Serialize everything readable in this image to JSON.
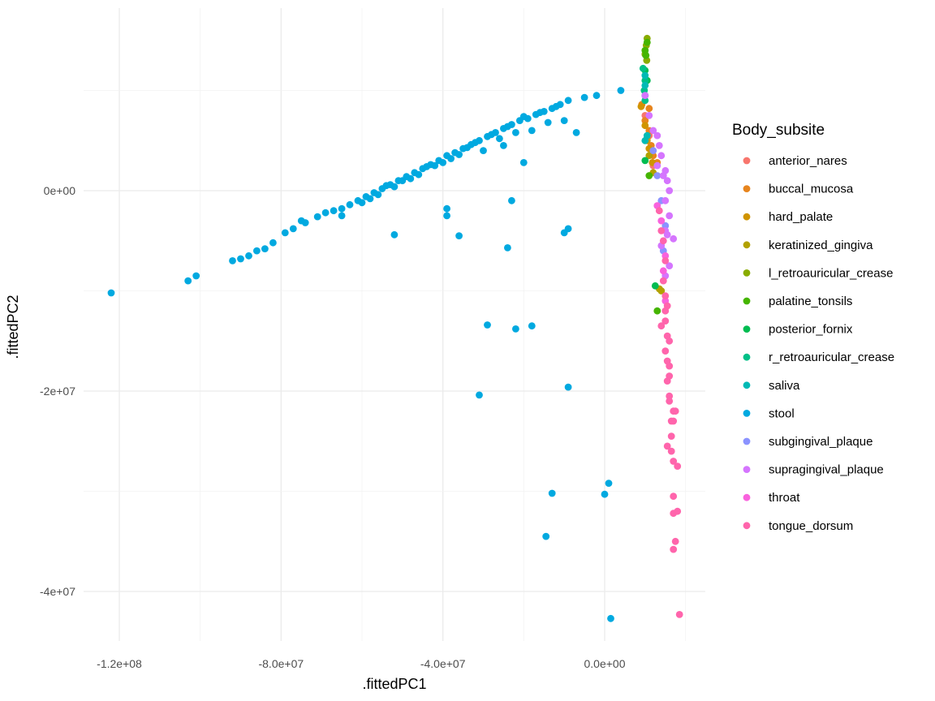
{
  "chart_data": {
    "type": "scatter",
    "title": "",
    "xlabel": ".fittedPC1",
    "ylabel": ".fittedPC2",
    "xlim": [
      -125000000.0,
      25000000.0
    ],
    "ylim": [
      -45000000.0,
      18000000.0
    ],
    "x_ticks": [
      {
        "value": -120000000.0,
        "label": "-1.2e+08"
      },
      {
        "value": -80000000.0,
        "label": "-8.0e+07"
      },
      {
        "value": -40000000.0,
        "label": "-4.0e+07"
      },
      {
        "value": 0,
        "label": "0.0e+00"
      }
    ],
    "y_ticks": [
      {
        "value": 0,
        "label": "0e+00"
      },
      {
        "value": -20000000.0,
        "label": "-2e+07"
      },
      {
        "value": -40000000.0,
        "label": "-4e+07"
      }
    ],
    "grid": true,
    "legend": {
      "title": "Body_subsite",
      "position": "right"
    },
    "series": [
      {
        "name": "anterior_nares",
        "color": "#F8766D",
        "points": [
          [
            10000000.0,
            7500000.0
          ],
          [
            11000000.0,
            5500000.0
          ],
          [
            12000000.0,
            2500000.0
          ]
        ]
      },
      {
        "name": "buccal_mucosa",
        "color": "#E7851E",
        "points": [
          [
            9200000.0,
            8600000.0
          ],
          [
            10000000.0,
            7000000.0
          ],
          [
            11000000.0,
            6000000.0
          ],
          [
            10500000.0,
            5200000.0
          ],
          [
            11500000.0,
            4500000.0
          ],
          [
            12000000.0,
            3500000.0
          ],
          [
            11000000.0,
            8200000.0
          ],
          [
            13000000.0,
            2800000.0
          ]
        ]
      },
      {
        "name": "hard_palate",
        "color": "#D09400",
        "points": [
          [
            9000000.0,
            8400000.0
          ],
          [
            10000000.0,
            6500000.0
          ],
          [
            10500000.0,
            5000000.0
          ],
          [
            11000000.0,
            4200000.0
          ],
          [
            11800000.0,
            2800000.0
          ]
        ]
      },
      {
        "name": "keratinized_gingiva",
        "color": "#B2A100",
        "points": [
          [
            11000000.0,
            3500000.0
          ],
          [
            12000000.0,
            1800000.0
          ],
          [
            13500000.0,
            -9800000.0
          ],
          [
            14000000.0,
            -10000000.0
          ]
        ]
      },
      {
        "name": "l_retroauricular_crease",
        "color": "#89AC00",
        "points": [
          [
            10500000.0,
            15200000.0
          ],
          [
            10300000.0,
            14500000.0
          ],
          [
            10000000.0,
            13600000.0
          ],
          [
            10400000.0,
            13000000.0
          ]
        ]
      },
      {
        "name": "palatine_tonsils",
        "color": "#45B500",
        "points": [
          [
            10500000.0,
            14800000.0
          ],
          [
            10000000.0,
            14000000.0
          ],
          [
            10200000.0,
            13500000.0
          ],
          [
            11000000.0,
            1500000.0
          ],
          [
            13000000.0,
            -12000000.0
          ]
        ]
      },
      {
        "name": "posterior_fornix",
        "color": "#00BC51",
        "points": [
          [
            10000000.0,
            12000000.0
          ],
          [
            10500000.0,
            11000000.0
          ],
          [
            10000000.0,
            3000000.0
          ],
          [
            12500000.0,
            -9500000.0
          ]
        ]
      },
      {
        "name": "r_retroauricular_crease",
        "color": "#00C087",
        "points": [
          [
            9500000.0,
            12200000.0
          ],
          [
            10000000.0,
            11000000.0
          ],
          [
            9800000.0,
            10000000.0
          ],
          [
            10000000.0,
            9500000.0
          ],
          [
            10000000.0,
            9000000.0
          ]
        ]
      },
      {
        "name": "saliva",
        "color": "#00BAB5",
        "points": [
          [
            10000000.0,
            10500000.0
          ],
          [
            10000000.0,
            11500000.0
          ],
          [
            10500000.0,
            5500000.0
          ],
          [
            10000000.0,
            5000000.0
          ]
        ]
      },
      {
        "name": "stool",
        "color": "#00A9E0",
        "points": [
          [
            -122000000.0,
            -10200000.0
          ],
          [
            -103000000.0,
            -9000000.0
          ],
          [
            -101000000.0,
            -8500000.0
          ],
          [
            -92000000.0,
            -7000000.0
          ],
          [
            -90000000.0,
            -6800000.0
          ],
          [
            -88000000.0,
            -6500000.0
          ],
          [
            -86000000.0,
            -6000000.0
          ],
          [
            -84000000.0,
            -5800000.0
          ],
          [
            -82000000.0,
            -5200000.0
          ],
          [
            -79000000.0,
            -4200000.0
          ],
          [
            -77000000.0,
            -3800000.0
          ],
          [
            -74000000.0,
            -3200000.0
          ],
          [
            -71000000.0,
            -2600000.0
          ],
          [
            -69000000.0,
            -2200000.0
          ],
          [
            -67000000.0,
            -2000000.0
          ],
          [
            -65000000.0,
            -1800000.0
          ],
          [
            -63000000.0,
            -1400000.0
          ],
          [
            -61000000.0,
            -1000000.0
          ],
          [
            -59000000.0,
            -600000.0
          ],
          [
            -57000000.0,
            -200000.0
          ],
          [
            -55000000.0,
            200000.0
          ],
          [
            -53000000.0,
            600000.0
          ],
          [
            -51000000.0,
            1000000.0
          ],
          [
            -49000000.0,
            1400000.0
          ],
          [
            -47000000.0,
            1800000.0
          ],
          [
            -45000000.0,
            2200000.0
          ],
          [
            -43000000.0,
            2600000.0
          ],
          [
            -41000000.0,
            3000000.0
          ],
          [
            -39000000.0,
            3500000.0
          ],
          [
            -37000000.0,
            3800000.0
          ],
          [
            -35000000.0,
            4200000.0
          ],
          [
            -33000000.0,
            4600000.0
          ],
          [
            -31000000.0,
            5000000.0
          ],
          [
            -29000000.0,
            5400000.0
          ],
          [
            -27000000.0,
            5800000.0
          ],
          [
            -25000000.0,
            6200000.0
          ],
          [
            -23000000.0,
            6600000.0
          ],
          [
            -21000000.0,
            7000000.0
          ],
          [
            -19000000.0,
            7200000.0
          ],
          [
            -17000000.0,
            7600000.0
          ],
          [
            -15000000.0,
            7900000.0
          ],
          [
            -13000000.0,
            8200000.0
          ],
          [
            -11000000.0,
            8600000.0
          ],
          [
            -9000000.0,
            9000000.0
          ],
          [
            -5000000.0,
            9300000.0
          ],
          [
            -2000000.0,
            9500000.0
          ],
          [
            4000000.0,
            10000000.0
          ],
          [
            -58000000.0,
            -800000.0
          ],
          [
            -56000000.0,
            -400000.0
          ],
          [
            -52000000.0,
            400000.0
          ],
          [
            -48000000.0,
            1200000.0
          ],
          [
            -44000000.0,
            2400000.0
          ],
          [
            -40000000.0,
            2800000.0
          ],
          [
            -36000000.0,
            3600000.0
          ],
          [
            -32000000.0,
            4800000.0
          ],
          [
            -28000000.0,
            5600000.0
          ],
          [
            -24000000.0,
            6400000.0
          ],
          [
            -20000000.0,
            7400000.0
          ],
          [
            -16000000.0,
            7800000.0
          ],
          [
            -12000000.0,
            8400000.0
          ],
          [
            -30000000.0,
            4000000.0
          ],
          [
            -26000000.0,
            5200000.0
          ],
          [
            -22000000.0,
            5800000.0
          ],
          [
            -18000000.0,
            6000000.0
          ],
          [
            -14000000.0,
            6800000.0
          ],
          [
            -10000000.0,
            7000000.0
          ],
          [
            -7000000.0,
            5800000.0
          ],
          [
            -20000000.0,
            2800000.0
          ],
          [
            -25000000.0,
            4500000.0
          ],
          [
            -23000000.0,
            -1000000.0
          ],
          [
            -39000000.0,
            -1800000.0
          ],
          [
            -39000000.0,
            -2500000.0
          ],
          [
            -52000000.0,
            -4400000.0
          ],
          [
            -36000000.0,
            -4500000.0
          ],
          [
            -24000000.0,
            -5700000.0
          ],
          [
            -10000000.0,
            -4200000.0
          ],
          [
            -9000000.0,
            -3800000.0
          ],
          [
            -29000000.0,
            -13400000.0
          ],
          [
            -22000000.0,
            -13800000.0
          ],
          [
            -18000000.0,
            -13500000.0
          ],
          [
            -31000000.0,
            -20400000.0
          ],
          [
            -9000000.0,
            -19600000.0
          ],
          [
            1000000.0,
            -29200000.0
          ],
          [
            -13000000.0,
            -30200000.0
          ],
          [
            0,
            -30300000.0
          ],
          [
            -14500000.0,
            -34500000.0
          ],
          [
            1500000.0,
            -42700000.0
          ],
          [
            -65000000.0,
            -2500000.0
          ],
          [
            -75000000.0,
            -3000000.0
          ],
          [
            -60000000.0,
            -1200000.0
          ],
          [
            -46000000.0,
            1600000.0
          ],
          [
            -42000000.0,
            2500000.0
          ],
          [
            -38000000.0,
            3200000.0
          ],
          [
            -34000000.0,
            4300000.0
          ],
          [
            -50000000.0,
            1000000.0
          ],
          [
            -54000000.0,
            500000.0
          ]
        ]
      },
      {
        "name": "subgingival_plaque",
        "color": "#8B93FF",
        "points": [
          [
            12000000.0,
            4000000.0
          ],
          [
            13000000.0,
            1500000.0
          ],
          [
            14000000.0,
            -1000000.0
          ],
          [
            15000000.0,
            -3500000.0
          ],
          [
            14500000.0,
            -6000000.0
          ]
        ]
      },
      {
        "name": "supragingival_plaque",
        "color": "#D575FE",
        "points": [
          [
            10000000.0,
            9500000.0
          ],
          [
            11000000.0,
            7500000.0
          ],
          [
            12000000.0,
            6000000.0
          ],
          [
            13000000.0,
            5500000.0
          ],
          [
            13500000.0,
            4500000.0
          ],
          [
            14000000.0,
            3500000.0
          ],
          [
            15000000.0,
            2000000.0
          ],
          [
            15500000.0,
            1000000.0
          ],
          [
            16000000.0,
            0
          ],
          [
            15000000.0,
            -1000000.0
          ],
          [
            16000000.0,
            -2500000.0
          ],
          [
            15000000.0,
            -4000000.0
          ],
          [
            17000000.0,
            -4800000.0
          ],
          [
            14000000.0,
            -5500000.0
          ],
          [
            16000000.0,
            -7500000.0
          ],
          [
            15000000.0,
            -8500000.0
          ],
          [
            13000000.0,
            2500000.0
          ],
          [
            14500000.0,
            1500000.0
          ],
          [
            15500000.0,
            -4400000.0
          ]
        ]
      },
      {
        "name": "throat",
        "color": "#F962DD",
        "points": [
          [
            13000000.0,
            -1500000.0
          ],
          [
            14000000.0,
            -3000000.0
          ],
          [
            15000000.0,
            -6500000.0
          ],
          [
            14500000.0,
            -8000000.0
          ],
          [
            15000000.0,
            -11000000.0
          ]
        ]
      },
      {
        "name": "tongue_dorsum",
        "color": "#FF65AC",
        "points": [
          [
            13500000.0,
            -2000000.0
          ],
          [
            14000000.0,
            -4000000.0
          ],
          [
            14500000.0,
            -5000000.0
          ],
          [
            15000000.0,
            -7000000.0
          ],
          [
            14500000.0,
            -9000000.0
          ],
          [
            15000000.0,
            -10500000.0
          ],
          [
            15500000.0,
            -11500000.0
          ],
          [
            15000000.0,
            -13000000.0
          ],
          [
            15500000.0,
            -14500000.0
          ],
          [
            15000000.0,
            -16000000.0
          ],
          [
            16000000.0,
            -17500000.0
          ],
          [
            15500000.0,
            -19000000.0
          ],
          [
            16000000.0,
            -20500000.0
          ],
          [
            17000000.0,
            -22000000.0
          ],
          [
            17000000.0,
            -23000000.0
          ],
          [
            16500000.0,
            -24500000.0
          ],
          [
            15500000.0,
            -25500000.0
          ],
          [
            17000000.0,
            -27000000.0
          ],
          [
            18000000.0,
            -27500000.0
          ],
          [
            16500000.0,
            -26000000.0
          ],
          [
            16000000.0,
            -21000000.0
          ],
          [
            17500000.0,
            -22000000.0
          ],
          [
            17000000.0,
            -30500000.0
          ],
          [
            17000000.0,
            -32200000.0
          ],
          [
            18000000.0,
            -32000000.0
          ],
          [
            17500000.0,
            -35000000.0
          ],
          [
            17000000.0,
            -35800000.0
          ],
          [
            18500000.0,
            -42300000.0
          ],
          [
            15500000.0,
            -17000000.0
          ],
          [
            16000000.0,
            -15000000.0
          ],
          [
            15000000.0,
            -12000000.0
          ],
          [
            14000000.0,
            -13500000.0
          ],
          [
            16000000.0,
            -18500000.0
          ],
          [
            16500000.0,
            -23000000.0
          ]
        ]
      }
    ]
  }
}
